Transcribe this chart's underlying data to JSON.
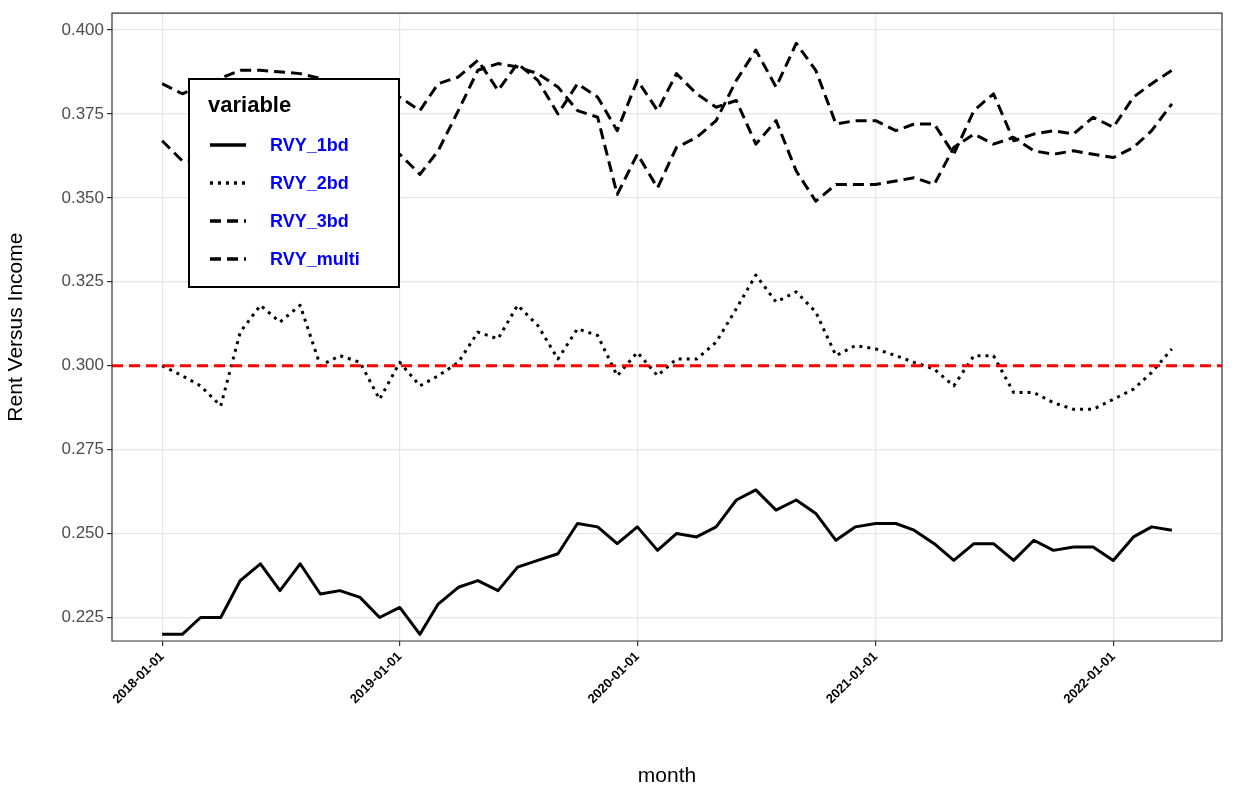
{
  "chart_data": {
    "type": "line",
    "xlabel": "month",
    "ylabel": "Rent Versus Income",
    "legend_title": "variable",
    "legend": "top left",
    "grid": true,
    "x": [
      "2018-01-01",
      "2018-02-01",
      "2018-03-01",
      "2018-04-01",
      "2018-05-01",
      "2018-06-01",
      "2018-07-01",
      "2018-08-01",
      "2018-09-01",
      "2018-10-01",
      "2018-11-01",
      "2018-12-01",
      "2019-01-01",
      "2019-02-01",
      "2019-03-01",
      "2019-04-01",
      "2019-05-01",
      "2019-06-01",
      "2019-07-01",
      "2019-08-01",
      "2019-09-01",
      "2019-10-01",
      "2019-11-01",
      "2019-12-01",
      "2020-01-01",
      "2020-02-01",
      "2020-03-01",
      "2020-04-01",
      "2020-05-01",
      "2020-06-01",
      "2020-07-01",
      "2020-08-01",
      "2020-09-01",
      "2020-10-01",
      "2020-11-01",
      "2020-12-01",
      "2021-01-01",
      "2021-02-01",
      "2021-03-01",
      "2021-04-01",
      "2021-05-01",
      "2021-06-01",
      "2021-07-01",
      "2021-08-01",
      "2021-09-01",
      "2021-10-01",
      "2021-11-01",
      "2021-12-01",
      "2022-01-01",
      "2022-02-01",
      "2022-03-01",
      "2022-04-01"
    ],
    "xlim": [
      "2017-10-16",
      "2022-06-17"
    ],
    "xticks": [
      {
        "value": "2018-01-01",
        "label": "2018-01-01"
      },
      {
        "value": "2019-01-01",
        "label": "2019-01-01"
      },
      {
        "value": "2020-01-01",
        "label": "2020-01-01"
      },
      {
        "value": "2021-01-01",
        "label": "2021-01-01"
      },
      {
        "value": "2022-01-01",
        "label": "2022-01-01"
      }
    ],
    "ylim": [
      0.218,
      0.405
    ],
    "yticks": [
      {
        "value": 0.225,
        "label": "0.225"
      },
      {
        "value": 0.25,
        "label": "0.250"
      },
      {
        "value": 0.275,
        "label": "0.275"
      },
      {
        "value": 0.3,
        "label": "0.300"
      },
      {
        "value": 0.325,
        "label": "0.325"
      },
      {
        "value": 0.35,
        "label": "0.350"
      },
      {
        "value": 0.375,
        "label": "0.375"
      },
      {
        "value": 0.4,
        "label": "0.400"
      }
    ],
    "ref_lines": [
      {
        "axis": "y",
        "value": 0.3,
        "color": "#ff0000",
        "line_style": "dashed"
      }
    ],
    "series": [
      {
        "name": "RVY_1bd",
        "color": "#000000",
        "line_style": "solid",
        "values": [
          0.22,
          0.22,
          0.225,
          0.225,
          0.236,
          0.241,
          0.233,
          0.241,
          0.232,
          0.233,
          0.231,
          0.225,
          0.228,
          0.22,
          0.229,
          0.234,
          0.236,
          0.233,
          0.24,
          0.242,
          0.244,
          0.253,
          0.252,
          0.247,
          0.252,
          0.245,
          0.25,
          0.249,
          0.252,
          0.26,
          0.263,
          0.257,
          0.26,
          0.256,
          0.248,
          0.252,
          0.253,
          0.253,
          0.251,
          0.247,
          0.242,
          0.247,
          0.247,
          0.242,
          0.248,
          0.245,
          0.246,
          0.246,
          0.242,
          0.249,
          0.252,
          0.251
        ]
      },
      {
        "name": "RVY_2bd",
        "color": "#000000",
        "line_style": "dotted",
        "values": [
          0.3,
          0.297,
          0.294,
          0.288,
          0.31,
          0.318,
          0.313,
          0.318,
          0.3,
          0.303,
          0.301,
          0.29,
          0.301,
          0.294,
          0.297,
          0.301,
          0.31,
          0.308,
          0.318,
          0.312,
          0.302,
          0.311,
          0.309,
          0.297,
          0.304,
          0.297,
          0.302,
          0.302,
          0.307,
          0.317,
          0.327,
          0.319,
          0.322,
          0.316,
          0.303,
          0.306,
          0.305,
          0.303,
          0.301,
          0.299,
          0.294,
          0.303,
          0.303,
          0.292,
          0.292,
          0.289,
          0.287,
          0.287,
          0.29,
          0.293,
          0.298,
          0.305
        ]
      },
      {
        "name": "RVY_3bd",
        "color": "#000000",
        "line_style": "dashed",
        "values": [
          0.384,
          0.381,
          null,
          null,
          0.388,
          0.388,
          null,
          0.387,
          null,
          null,
          null,
          null,
          0.38,
          0.376,
          0.384,
          0.386,
          0.391,
          0.382,
          0.39,
          0.385,
          0.375,
          0.384,
          0.38,
          0.37,
          0.385,
          0.376,
          0.387,
          0.381,
          0.377,
          0.379,
          0.366,
          0.373,
          0.358,
          0.349,
          0.354,
          0.354,
          0.354,
          0.355,
          0.356,
          0.354,
          0.365,
          0.369,
          0.366,
          0.368,
          0.364,
          0.363,
          0.364,
          0.363,
          0.362,
          0.365,
          0.37,
          0.378
        ]
      },
      {
        "name": "RVY_multi",
        "color": "#000000",
        "line_style": "dashed",
        "values": [
          0.367,
          0.361,
          null,
          null,
          null,
          null,
          null,
          null,
          null,
          null,
          null,
          null,
          0.363,
          0.357,
          0.364,
          0.376,
          0.388,
          0.39,
          0.389,
          0.387,
          0.383,
          0.376,
          0.374,
          0.351,
          0.363,
          0.353,
          0.365,
          0.368,
          0.373,
          0.385,
          0.394,
          0.383,
          0.396,
          0.388,
          0.372,
          0.373,
          0.373,
          0.37,
          0.372,
          0.372,
          0.363,
          0.376,
          0.381,
          0.367,
          0.369,
          0.37,
          0.369,
          0.374,
          0.371,
          0.38,
          0.384,
          0.388
        ]
      }
    ]
  }
}
